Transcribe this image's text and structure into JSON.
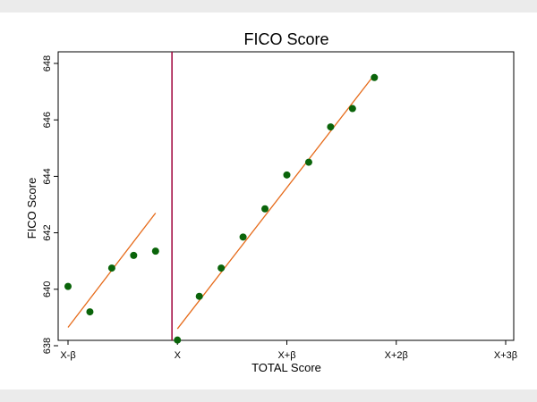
{
  "chart_data": {
    "type": "scatter",
    "title": "FICO Score",
    "xlabel": "TOTAL Score",
    "ylabel": "FICO Score",
    "xlim": [
      -1,
      3
    ],
    "ylim": [
      638,
      648.25
    ],
    "x_ticks": [
      {
        "value": -1,
        "label": "X-β"
      },
      {
        "value": 0,
        "label": "X"
      },
      {
        "value": 1,
        "label": "X+β"
      },
      {
        "value": 2,
        "label": "X+2β"
      },
      {
        "value": 3,
        "label": "X+3β"
      }
    ],
    "y_ticks": [
      {
        "value": 638,
        "label": "638"
      },
      {
        "value": 640,
        "label": "640"
      },
      {
        "value": 642,
        "label": "642"
      },
      {
        "value": 644,
        "label": "644"
      },
      {
        "value": 646,
        "label": "646"
      },
      {
        "value": 648,
        "label": "648"
      }
    ],
    "cutoff": {
      "x": -0.05,
      "color": "#a0003a"
    },
    "grid": false,
    "legend": "none",
    "point_color": "#0a640a",
    "fit_color": "#e66a19",
    "points": [
      {
        "x": -1.0,
        "y": 640.1
      },
      {
        "x": -0.8,
        "y": 639.2
      },
      {
        "x": -0.6,
        "y": 640.75
      },
      {
        "x": -0.4,
        "y": 641.2
      },
      {
        "x": -0.2,
        "y": 641.35
      },
      {
        "x": 0.0,
        "y": 638.2
      },
      {
        "x": 0.2,
        "y": 639.75
      },
      {
        "x": 0.4,
        "y": 640.75
      },
      {
        "x": 0.6,
        "y": 641.85
      },
      {
        "x": 0.8,
        "y": 642.85
      },
      {
        "x": 1.0,
        "y": 644.05
      },
      {
        "x": 1.2,
        "y": 644.5
      },
      {
        "x": 1.4,
        "y": 645.75
      },
      {
        "x": 1.6,
        "y": 646.4
      },
      {
        "x": 1.8,
        "y": 647.5
      }
    ],
    "fit_lines": [
      {
        "x": [
          -1.0,
          -0.2
        ],
        "y": [
          638.65,
          642.7
        ]
      },
      {
        "x": [
          0.0,
          1.8
        ],
        "y": [
          638.6,
          647.6
        ]
      }
    ]
  }
}
